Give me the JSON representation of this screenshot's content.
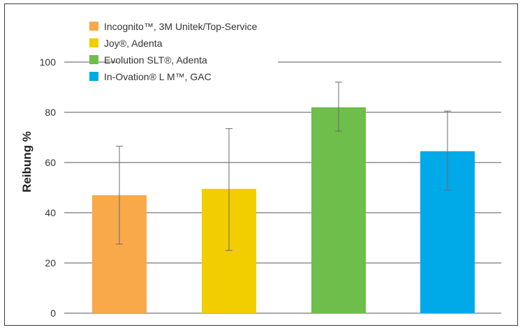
{
  "chart_data": {
    "type": "bar",
    "ylabel": "Reibung %",
    "xlabel": "",
    "title": "",
    "ylim": [
      0,
      100
    ],
    "yticks": [
      0,
      20,
      40,
      60,
      80,
      100
    ],
    "grid": true,
    "legend_position": "top-left",
    "series": [
      {
        "name": "Incognito™, 3M Unitek/Top-Service",
        "value": 47,
        "error_low": 27.5,
        "error_high": 66.5,
        "color": "#f9a84a"
      },
      {
        "name": "Joy®, Adenta",
        "value": 49.5,
        "error_low": 25,
        "error_high": 73.5,
        "color": "#f2cd00"
      },
      {
        "name": "Evolution SLT®, Adenta",
        "value": 82,
        "error_low": 72.5,
        "error_high": 92,
        "color": "#6dbe4b"
      },
      {
        "name": "In-Ovation® L M™, GAC",
        "value": 64.5,
        "error_low": 49,
        "error_high": 80.5,
        "color": "#00a9e8"
      }
    ]
  }
}
